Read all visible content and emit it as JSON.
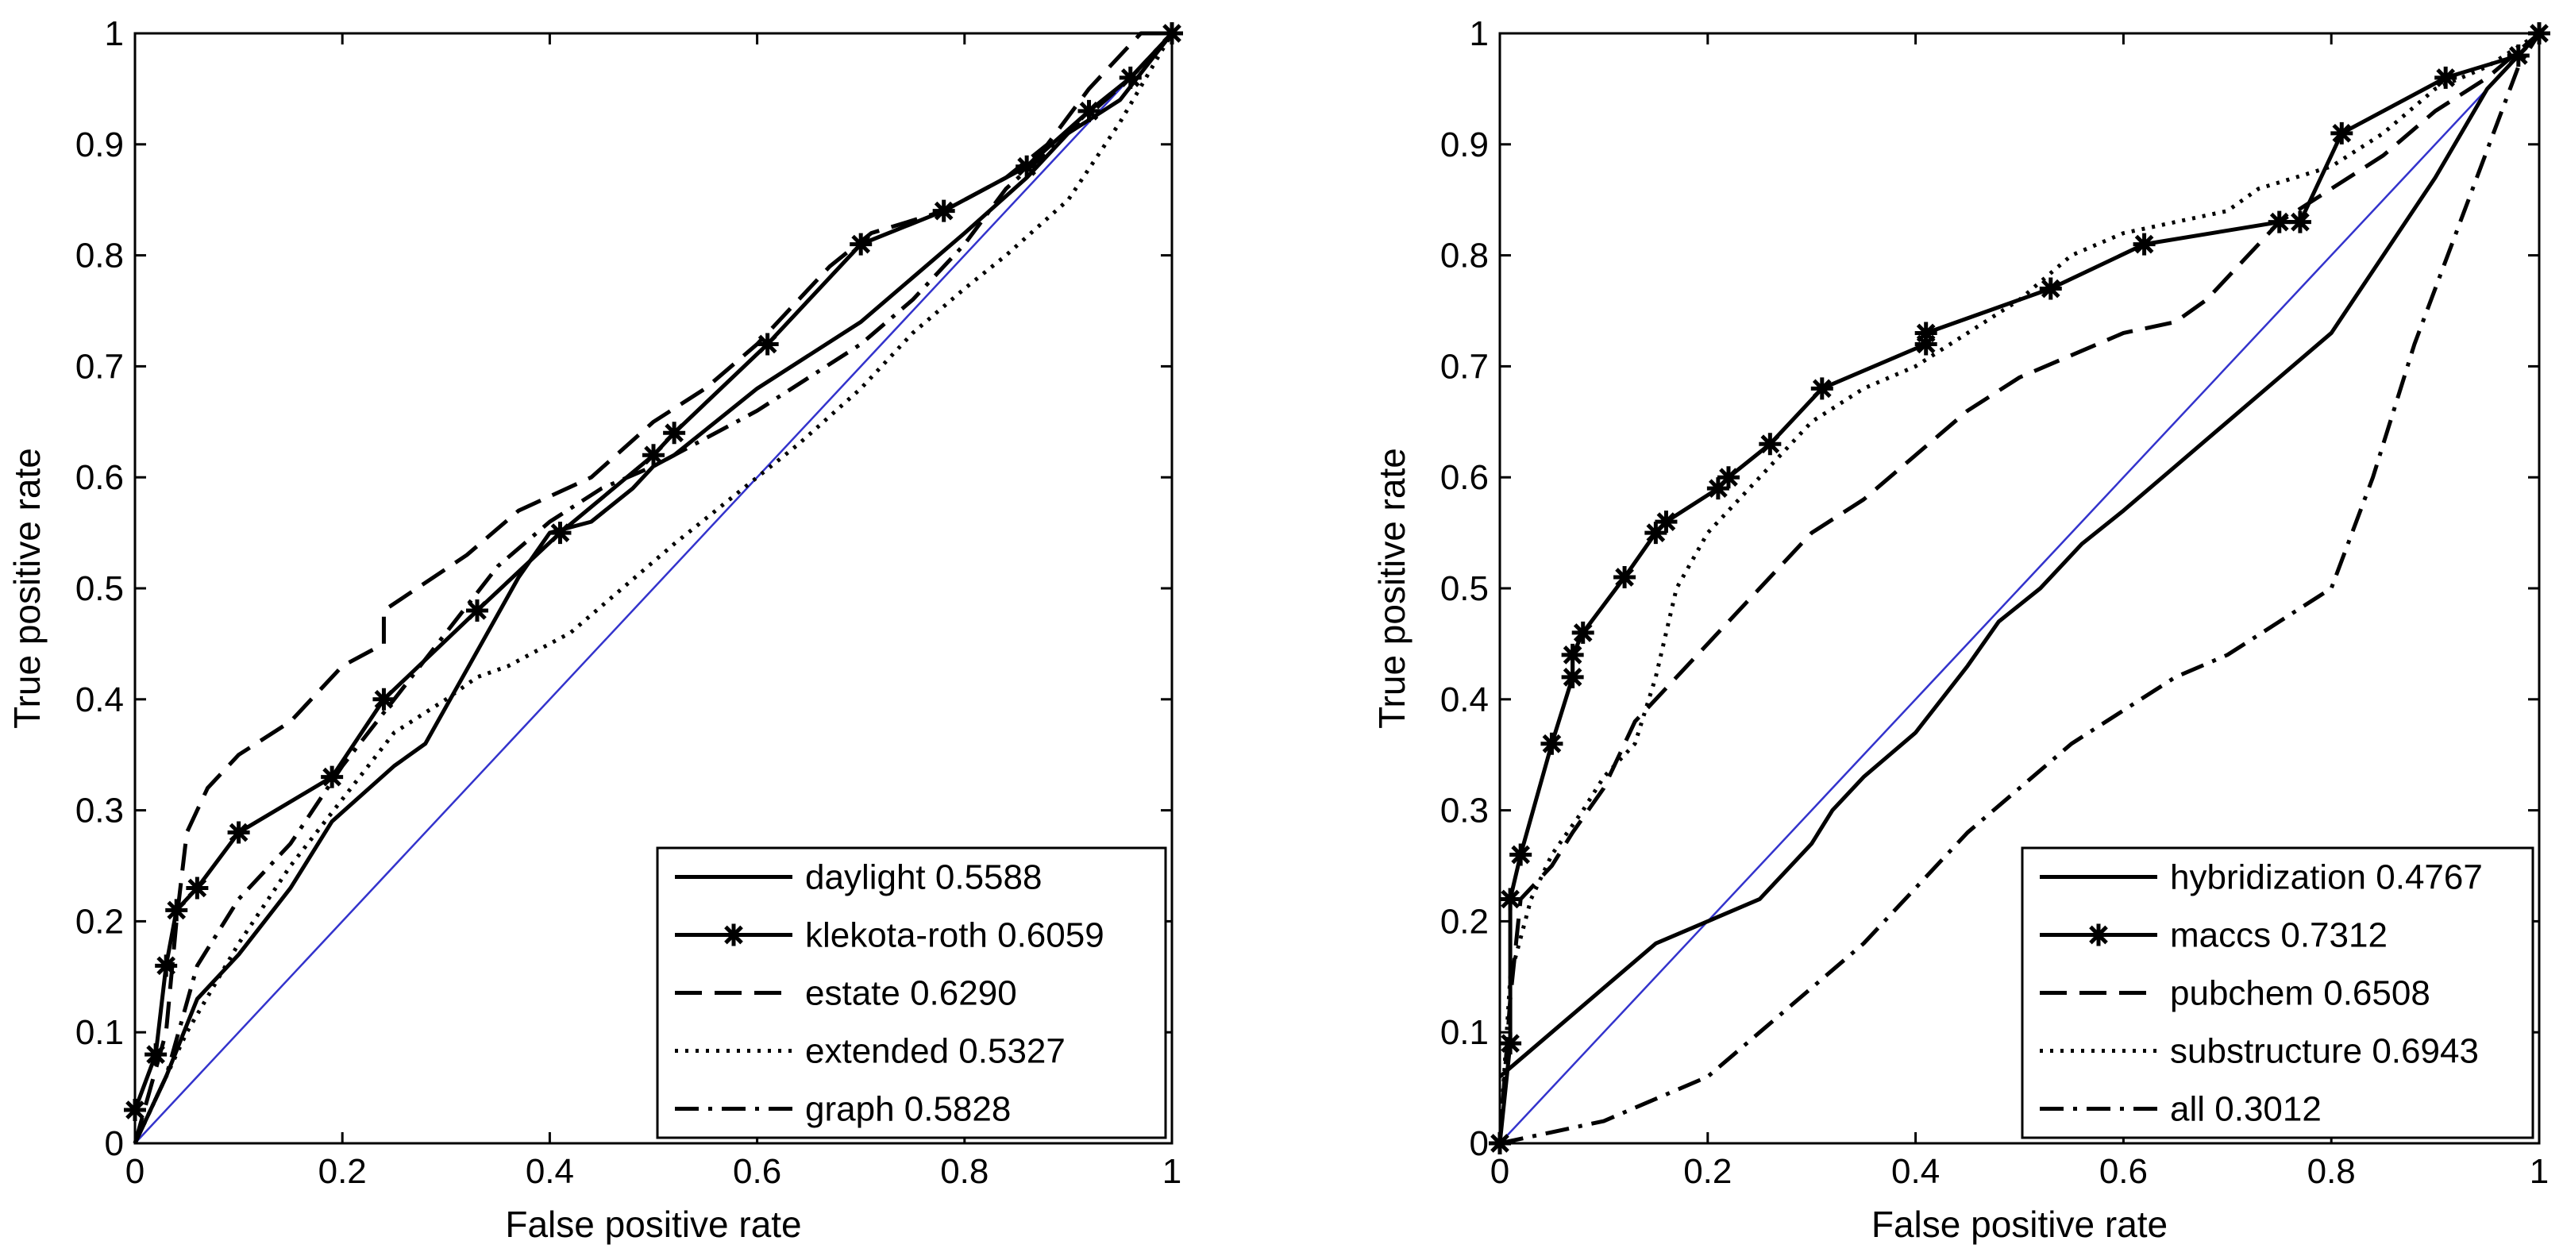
{
  "chart_data": [
    {
      "type": "line",
      "title": "",
      "xlabel": "False positive rate",
      "ylabel": "True positive rate",
      "xlim": [
        0,
        1
      ],
      "ylim": [
        0,
        1
      ],
      "x_ticks": [
        "0",
        "0.2",
        "0.4",
        "0.6",
        "0.8",
        "1"
      ],
      "y_ticks": [
        "0",
        "0.1",
        "0.2",
        "0.3",
        "0.4",
        "0.5",
        "0.6",
        "0.7",
        "0.8",
        "0.9",
        "1"
      ],
      "grid": false,
      "legend_position": "bottom-right",
      "diagonal": {
        "color": "#3333cc",
        "x": [
          0,
          1
        ],
        "y": [
          0,
          1
        ]
      },
      "series": [
        {
          "name": "daylight 0.5588",
          "style": "solid",
          "marker": "none",
          "x": [
            0,
            0.03,
            0.06,
            0.1,
            0.15,
            0.19,
            0.25,
            0.28,
            0.31,
            0.34,
            0.37,
            0.4,
            0.44,
            0.48,
            0.5,
            0.52,
            0.56,
            0.6,
            0.65,
            0.7,
            0.75,
            0.8,
            0.86,
            0.9,
            0.95,
            1
          ],
          "y": [
            0,
            0.06,
            0.13,
            0.17,
            0.23,
            0.29,
            0.34,
            0.36,
            0.41,
            0.46,
            0.51,
            0.55,
            0.56,
            0.59,
            0.61,
            0.62,
            0.65,
            0.68,
            0.71,
            0.74,
            0.78,
            0.82,
            0.87,
            0.91,
            0.94,
            1
          ]
        },
        {
          "name": "klekota-roth 0.6059",
          "style": "solid",
          "marker": "star",
          "x": [
            0,
            0.02,
            0.03,
            0.04,
            0.06,
            0.1,
            0.19,
            0.24,
            0.33,
            0.41,
            0.5,
            0.52,
            0.61,
            0.7,
            0.78,
            0.86,
            0.92,
            0.96,
            1
          ],
          "y": [
            0.03,
            0.08,
            0.16,
            0.21,
            0.23,
            0.28,
            0.33,
            0.4,
            0.48,
            0.55,
            0.62,
            0.64,
            0.72,
            0.81,
            0.84,
            0.88,
            0.93,
            0.96,
            1
          ]
        },
        {
          "name": "estate 0.6290",
          "style": "dashed",
          "marker": "none",
          "x": [
            0,
            0.03,
            0.04,
            0.05,
            0.07,
            0.1,
            0.15,
            0.2,
            0.24,
            0.24,
            0.32,
            0.37,
            0.44,
            0.5,
            0.55,
            0.6,
            0.64,
            0.67,
            0.71,
            0.78,
            0.84,
            0.88,
            0.92,
            0.97,
            1
          ],
          "y": [
            0,
            0.1,
            0.2,
            0.28,
            0.32,
            0.35,
            0.38,
            0.43,
            0.45,
            0.48,
            0.53,
            0.57,
            0.6,
            0.65,
            0.68,
            0.72,
            0.76,
            0.79,
            0.82,
            0.84,
            0.87,
            0.9,
            0.95,
            1,
            1
          ]
        },
        {
          "name": "extended 0.5327",
          "style": "dotted",
          "marker": "none",
          "x": [
            0,
            0.05,
            0.1,
            0.15,
            0.2,
            0.25,
            0.3,
            0.33,
            0.36,
            0.42,
            0.47,
            0.52,
            0.56,
            0.6,
            0.64,
            0.7,
            0.75,
            0.8,
            0.84,
            0.9,
            0.95,
            1
          ],
          "y": [
            0,
            0.1,
            0.18,
            0.25,
            0.31,
            0.37,
            0.4,
            0.42,
            0.43,
            0.46,
            0.5,
            0.54,
            0.57,
            0.6,
            0.63,
            0.68,
            0.73,
            0.77,
            0.8,
            0.85,
            0.92,
            1
          ]
        },
        {
          "name": "graph 0.5828",
          "style": "dashdot",
          "marker": "none",
          "x": [
            0,
            0.03,
            0.06,
            0.1,
            0.15,
            0.2,
            0.25,
            0.3,
            0.35,
            0.4,
            0.45,
            0.5,
            0.56,
            0.6,
            0.65,
            0.7,
            0.75,
            0.8,
            0.84,
            0.9,
            0.96,
            1
          ],
          "y": [
            0,
            0.06,
            0.16,
            0.22,
            0.27,
            0.34,
            0.4,
            0.46,
            0.52,
            0.56,
            0.59,
            0.61,
            0.64,
            0.66,
            0.69,
            0.72,
            0.76,
            0.81,
            0.86,
            0.91,
            0.96,
            1
          ]
        }
      ]
    },
    {
      "type": "line",
      "title": "",
      "xlabel": "False positive rate",
      "ylabel": "True positive rate",
      "xlim": [
        0,
        1
      ],
      "ylim": [
        0,
        1
      ],
      "x_ticks": [
        "0",
        "0.2",
        "0.4",
        "0.6",
        "0.8",
        "1"
      ],
      "y_ticks": [
        "0",
        "0.1",
        "0.2",
        "0.3",
        "0.4",
        "0.5",
        "0.6",
        "0.7",
        "0.8",
        "0.9",
        "1"
      ],
      "grid": false,
      "legend_position": "bottom-right",
      "diagonal": {
        "color": "#3333cc",
        "x": [
          0,
          1
        ],
        "y": [
          0,
          1
        ]
      },
      "series": [
        {
          "name": "hybridization 0.4767",
          "style": "solid",
          "marker": "none",
          "x": [
            0,
            0.05,
            0.1,
            0.15,
            0.2,
            0.25,
            0.3,
            0.32,
            0.35,
            0.4,
            0.45,
            0.48,
            0.52,
            0.56,
            0.6,
            0.65,
            0.7,
            0.75,
            0.8,
            0.85,
            0.9,
            0.95,
            1
          ],
          "y": [
            0.06,
            0.1,
            0.14,
            0.18,
            0.2,
            0.22,
            0.27,
            0.3,
            0.33,
            0.37,
            0.43,
            0.47,
            0.5,
            0.54,
            0.57,
            0.61,
            0.65,
            0.69,
            0.73,
            0.8,
            0.87,
            0.95,
            1
          ]
        },
        {
          "name": "maccs 0.7312",
          "style": "solid",
          "marker": "star",
          "x": [
            0,
            0.01,
            0.01,
            0.02,
            0.05,
            0.07,
            0.07,
            0.08,
            0.12,
            0.15,
            0.16,
            0.21,
            0.22,
            0.26,
            0.31,
            0.41,
            0.41,
            0.53,
            0.62,
            0.75,
            0.77,
            0.81,
            0.91,
            0.98,
            1
          ],
          "y": [
            0,
            0.09,
            0.22,
            0.26,
            0.36,
            0.42,
            0.44,
            0.46,
            0.51,
            0.55,
            0.56,
            0.59,
            0.6,
            0.63,
            0.68,
            0.72,
            0.73,
            0.77,
            0.81,
            0.83,
            0.83,
            0.91,
            0.96,
            0.98,
            1
          ]
        },
        {
          "name": "pubchem 0.6508",
          "style": "dashed",
          "marker": "none",
          "x": [
            0,
            0.01,
            0.02,
            0.05,
            0.07,
            0.1,
            0.13,
            0.15,
            0.2,
            0.25,
            0.3,
            0.35,
            0.4,
            0.45,
            0.5,
            0.55,
            0.6,
            0.65,
            0.68,
            0.72,
            0.75,
            0.8,
            0.85,
            0.9,
            0.95,
            1
          ],
          "y": [
            0,
            0.13,
            0.22,
            0.25,
            0.28,
            0.32,
            0.38,
            0.4,
            0.45,
            0.5,
            0.55,
            0.58,
            0.62,
            0.66,
            0.69,
            0.71,
            0.73,
            0.74,
            0.76,
            0.8,
            0.83,
            0.86,
            0.89,
            0.93,
            0.96,
            1
          ]
        },
        {
          "name": "substructure 0.6943",
          "style": "dotted",
          "marker": "none",
          "x": [
            0,
            0.01,
            0.03,
            0.05,
            0.08,
            0.1,
            0.13,
            0.15,
            0.17,
            0.2,
            0.25,
            0.3,
            0.35,
            0.4,
            0.45,
            0.5,
            0.55,
            0.6,
            0.65,
            0.7,
            0.73,
            0.8,
            0.85,
            0.9,
            0.95,
            1
          ],
          "y": [
            0,
            0.15,
            0.22,
            0.26,
            0.3,
            0.33,
            0.36,
            0.42,
            0.5,
            0.55,
            0.6,
            0.65,
            0.68,
            0.7,
            0.73,
            0.76,
            0.8,
            0.82,
            0.83,
            0.84,
            0.86,
            0.88,
            0.91,
            0.95,
            0.97,
            1
          ]
        },
        {
          "name": "all 0.3012",
          "style": "dashdot",
          "marker": "none",
          "x": [
            0,
            0.05,
            0.1,
            0.15,
            0.2,
            0.25,
            0.3,
            0.35,
            0.4,
            0.45,
            0.5,
            0.55,
            0.6,
            0.65,
            0.7,
            0.75,
            0.8,
            0.84,
            0.88,
            0.92,
            0.96,
            0.98,
            1
          ],
          "y": [
            0,
            0.01,
            0.02,
            0.04,
            0.06,
            0.1,
            0.14,
            0.18,
            0.23,
            0.28,
            0.32,
            0.36,
            0.39,
            0.42,
            0.44,
            0.47,
            0.5,
            0.6,
            0.72,
            0.82,
            0.92,
            0.97,
            1
          ]
        }
      ]
    }
  ]
}
